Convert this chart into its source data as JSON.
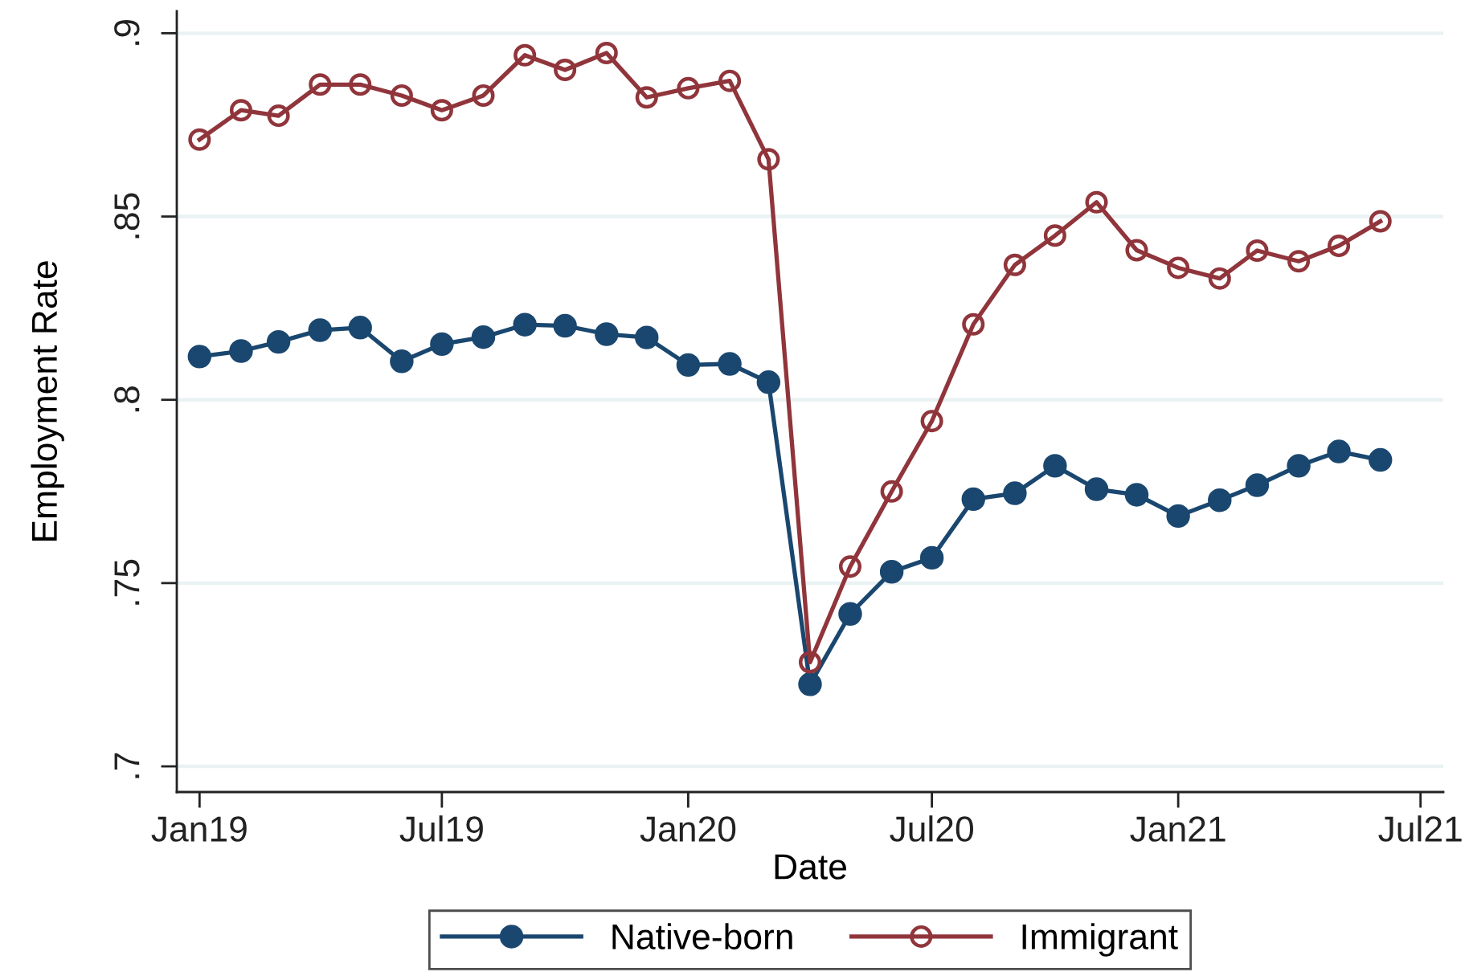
{
  "chart_data": {
    "type": "line",
    "xlabel": "Date",
    "ylabel": "Employment Rate",
    "x": [
      "2019-01",
      "2019-02",
      "2019-03",
      "2019-04",
      "2019-05",
      "2019-06",
      "2019-07",
      "2019-08",
      "2019-09",
      "2019-10",
      "2019-11",
      "2019-12",
      "2020-01",
      "2020-02",
      "2020-03",
      "2020-04",
      "2020-05",
      "2020-06",
      "2020-07",
      "2020-08",
      "2020-09",
      "2020-10",
      "2020-11",
      "2020-12",
      "2021-01",
      "2021-02",
      "2021-03",
      "2021-04",
      "2021-05",
      "2021-06"
    ],
    "series": [
      {
        "name": "Native-born",
        "color": "#1a476f",
        "values": [
          0.8118,
          0.8133,
          0.8158,
          0.819,
          0.8197,
          0.8105,
          0.8152,
          0.8171,
          0.8205,
          0.8202,
          0.8179,
          0.817,
          0.8095,
          0.8098,
          0.8048,
          0.7224,
          0.7416,
          0.7531,
          0.7569,
          0.7729,
          0.7745,
          0.782,
          0.7756,
          0.7741,
          0.7683,
          0.7726,
          0.7767,
          0.782,
          0.7859,
          0.7836
        ]
      },
      {
        "name": "Immigrant",
        "color": "#90353b",
        "values": [
          0.871,
          0.879,
          0.8775,
          0.886,
          0.886,
          0.883,
          0.879,
          0.883,
          0.894,
          0.89,
          0.8946,
          0.8825,
          0.885,
          0.887,
          0.8656,
          0.7284,
          0.7545,
          0.775,
          0.7942,
          0.8206,
          0.8368,
          0.8448,
          0.8539,
          0.8408,
          0.836,
          0.8331,
          0.8407,
          0.8378,
          0.842,
          0.8487
        ]
      }
    ],
    "xlim": [
      "2018-12-15",
      "2021-07-18"
    ],
    "ylim": [
      0.693,
      0.906
    ],
    "xticks": [
      {
        "value": "2019-01",
        "label": "Jan19"
      },
      {
        "value": "2019-07",
        "label": "Jul19"
      },
      {
        "value": "2020-01",
        "label": "Jan20"
      },
      {
        "value": "2020-07",
        "label": "Jul20"
      },
      {
        "value": "2021-01",
        "label": "Jan21"
      },
      {
        "value": "2021-07",
        "label": "Jul21"
      }
    ],
    "yticks": [
      {
        "value": 0.7,
        "label": ".7"
      },
      {
        "value": 0.75,
        "label": ".75"
      },
      {
        "value": 0.8,
        "label": ".8"
      },
      {
        "value": 0.85,
        "label": ".85"
      },
      {
        "value": 0.9,
        "label": ".9"
      }
    ],
    "grid": "y",
    "legend": "bottom",
    "marker": "circle",
    "line_style": "solid"
  }
}
